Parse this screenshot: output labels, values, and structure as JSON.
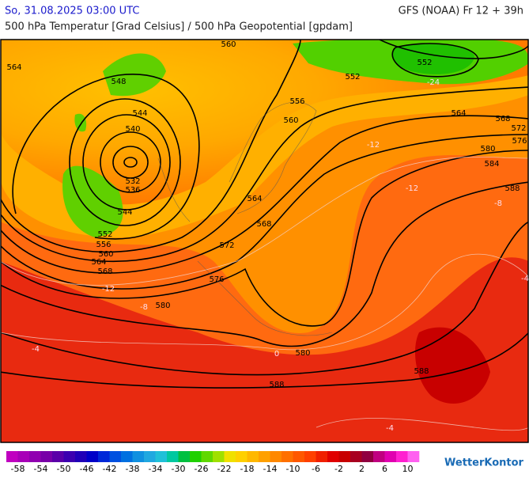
{
  "header": {
    "valid_time": "So, 31.08.2025 03:00 UTC",
    "model_run": "GFS (NOAA) Fr 12 + 39h",
    "parameter": "500 hPa Temperatur [Grad Celsius] / 500 hPa Geopotential [gpdam]"
  },
  "map": {
    "geopotential_labels": [
      "564",
      "560",
      "552",
      "552",
      "548",
      "556",
      "544",
      "540",
      "560",
      "564",
      "568",
      "572",
      "576",
      "580",
      "584",
      "588",
      "532",
      "536",
      "544",
      "564",
      "568",
      "552",
      "556",
      "560",
      "564",
      "568",
      "572",
      "576",
      "580",
      "580",
      "588",
      "588"
    ],
    "temperature_labels": [
      "-24",
      "-12",
      "-12",
      "-8",
      "-4",
      "-12",
      "-8",
      "-4",
      "0",
      "-4"
    ]
  },
  "colorbar": {
    "labels": [
      "-58",
      "-54",
      "-50",
      "-46",
      "-42",
      "-38",
      "-34",
      "-30",
      "-26",
      "-22",
      "-18",
      "-14",
      "-10",
      "-6",
      "-2",
      "2",
      "6",
      "10"
    ],
    "colors": [
      "#c000c0",
      "#a800b8",
      "#9000b0",
      "#7800a8",
      "#5a00a8",
      "#3c00b0",
      "#2000b8",
      "#0000c8",
      "#0028d8",
      "#0050e0",
      "#0070e0",
      "#1090e0",
      "#20a8e0",
      "#20c0d8",
      "#00c8a0",
      "#00c040",
      "#20d000",
      "#60d800",
      "#a0e000",
      "#f0e000",
      "#ffd000",
      "#ffb800",
      "#ffa000",
      "#ff8800",
      "#ff7000",
      "#ff5800",
      "#ff4000",
      "#f02000",
      "#e00000",
      "#c80000",
      "#a80020",
      "#900040",
      "#c00080",
      "#e000b0",
      "#ff20d0",
      "#ff60f0"
    ],
    "brand": "WetterKontor"
  }
}
